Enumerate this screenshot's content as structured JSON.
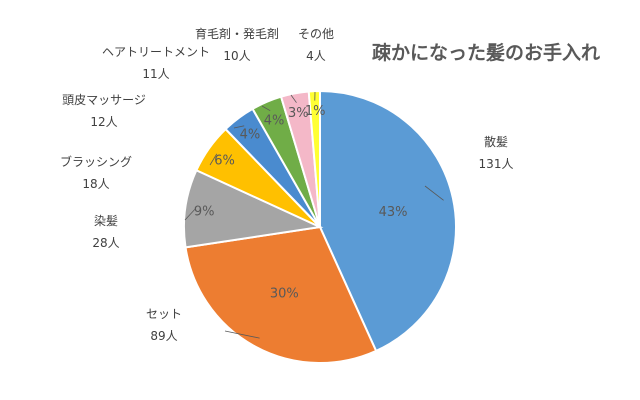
{
  "chart_data": {
    "type": "pie",
    "title": "疎かになった髪のお手入れ",
    "categories": [
      "散髪",
      "セット",
      "染髪",
      "ブラッシング",
      "頭皮マッサージ",
      "ヘアトリートメント",
      "育毛剤・発毛剤",
      "その他"
    ],
    "values": [
      131,
      89,
      28,
      18,
      12,
      11,
      10,
      4
    ],
    "value_labels": [
      "131人",
      "89人",
      "28人",
      "18人",
      "12人",
      "11人",
      "10人",
      "4人"
    ],
    "percent_labels": [
      "43%",
      "30%",
      "9%",
      "6%",
      "4%",
      "4%",
      "3%",
      "1%"
    ],
    "colors": [
      "#5b9bd5",
      "#ed7d31",
      "#a5a5a5",
      "#ffc000",
      "#4a8bcf",
      "#70ad47",
      "#f4b8c8",
      "#ffff33"
    ],
    "start_angle_deg": 0,
    "direction": "clockwise",
    "legend": "none"
  }
}
